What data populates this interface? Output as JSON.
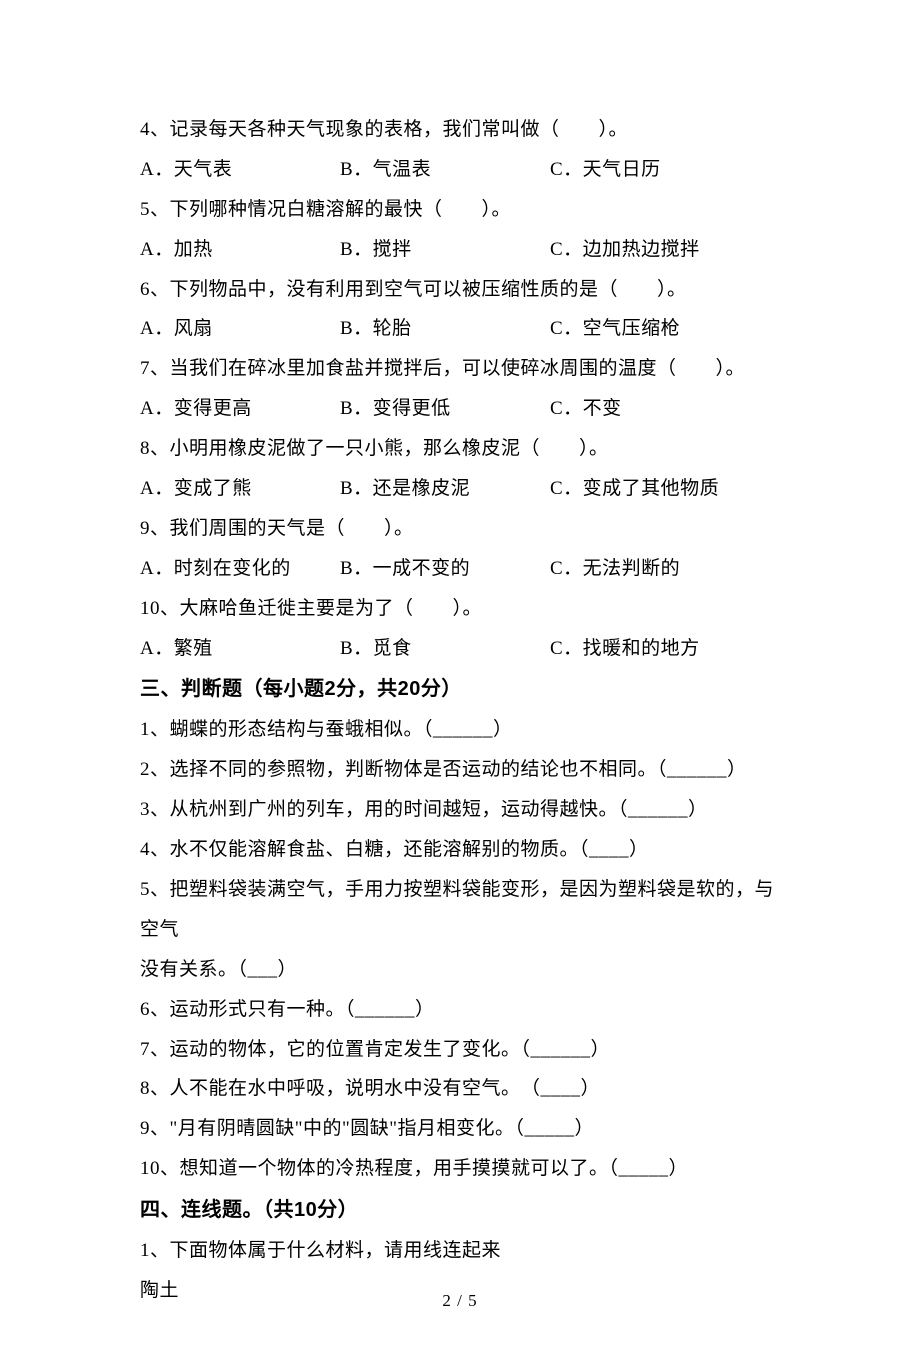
{
  "mc": {
    "q4": {
      "stem": "4、记录每天各种天气现象的表格，我们常叫做（　　）。",
      "a": "A．天气表",
      "b": "B．气温表",
      "c": "C．天气日历"
    },
    "q5": {
      "stem": "5、下列哪种情况白糖溶解的最快（　　）。",
      "a": "A．加热",
      "b": "B．搅拌",
      "c": "C．边加热边搅拌"
    },
    "q6": {
      "stem": "6、下列物品中，没有利用到空气可以被压缩性质的是（　　）。",
      "a": "A．风扇",
      "b": "B．轮胎",
      "c": "C．空气压缩枪"
    },
    "q7": {
      "stem": "7、当我们在碎冰里加食盐并搅拌后，可以使碎冰周围的温度（　　）。",
      "a": "A．变得更高",
      "b": "B．变得更低",
      "c": "C．不变"
    },
    "q8": {
      "stem": "8、小明用橡皮泥做了一只小熊，那么橡皮泥（　　）。",
      "a": "A．变成了熊",
      "b": "B．还是橡皮泥",
      "c": "C．变成了其他物质"
    },
    "q9": {
      "stem": "9、我们周围的天气是（　　）。",
      "a": "A．时刻在变化的",
      "b": "B．一成不变的",
      "c": "C．无法判断的"
    },
    "q10": {
      "stem": "10、大麻哈鱼迁徙主要是为了（　　）。",
      "a": "A．繁殖",
      "b": "B．觅食",
      "c": "C．找暖和的地方"
    }
  },
  "section3_header": "三、判断题（每小题2分，共20分）",
  "tf": {
    "q1": "1、蝴蝶的形态结构与蚕蛾相似。（______）",
    "q2": "2、选择不同的参照物，判断物体是否运动的结论也不相同。（______）",
    "q3": "3、从杭州到广州的列车，用的时间越短，运动得越快。（______）",
    "q4": "4、水不仅能溶解食盐、白糖，还能溶解别的物质。（____）",
    "q5a": "5、把塑料袋装满空气，手用力按塑料袋能变形，是因为塑料袋是软的，与空气",
    "q5b": "没有关系。（___）",
    "q6": "6、运动形式只有一种。（______）",
    "q7": "7、运动的物体，它的位置肯定发生了变化。（______）",
    "q8": "8、人不能在水中呼吸，说明水中没有空气。　（____）",
    "q9": "9、\"月有阴晴圆缺\"中的\"圆缺\"指月相变化。（_____）",
    "q10": "10、想知道一个物体的冷热程度，用手摸摸就可以了。（_____）"
  },
  "section4_header": "四、连线题。（共10分）",
  "match": {
    "q1": "1、下面物体属于什么材料，请用线连起来",
    "item1": "陶土"
  },
  "footer": "2 / 5"
}
